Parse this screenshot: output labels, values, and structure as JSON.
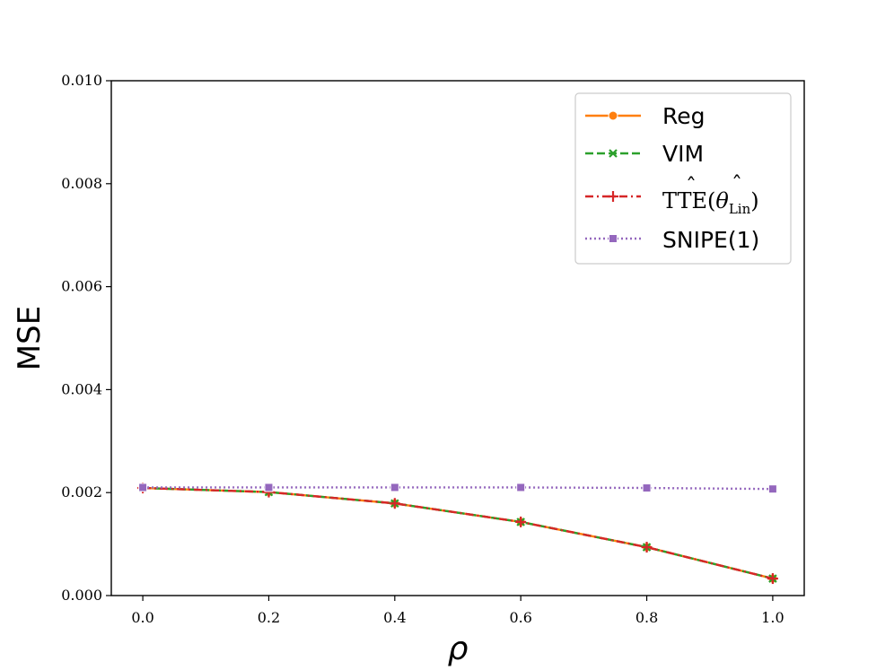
{
  "chart_data": {
    "type": "line",
    "xlabel": "ρ",
    "ylabel": "MSE",
    "xlim": [
      -0.05,
      1.05
    ],
    "ylim": [
      0.0,
      0.01
    ],
    "x_ticks": [
      "0.0",
      "0.2",
      "0.4",
      "0.6",
      "0.8",
      "1.0"
    ],
    "y_ticks": [
      "0.000",
      "0.002",
      "0.004",
      "0.006",
      "0.008",
      "0.010"
    ],
    "grid": false,
    "legend_position": "top-right",
    "x": [
      0.0,
      0.2,
      0.4,
      0.6,
      0.8,
      1.0
    ],
    "series": [
      {
        "name": "Reg",
        "values": [
          0.00209,
          0.00201,
          0.00179,
          0.00143,
          0.00094,
          0.00033
        ],
        "color": "#ff7f0e",
        "line_style": "solid",
        "marker": "circle"
      },
      {
        "name": "VIM",
        "values": [
          0.00209,
          0.00201,
          0.00179,
          0.00143,
          0.00094,
          0.00033
        ],
        "color": "#2ca02c",
        "line_style": "dashed",
        "marker": "x"
      },
      {
        "name": "TTE(θLin)",
        "values": [
          0.00209,
          0.00201,
          0.00179,
          0.00143,
          0.00094,
          0.00033
        ],
        "color": "#d62728",
        "line_style": "dashdot",
        "marker": "plus",
        "legend_math": {
          "hat_text": "TTE",
          "open": "(",
          "theta": "θ",
          "subscript": "Lin",
          "close": ")"
        }
      },
      {
        "name": "SNIPE(1)",
        "values": [
          0.0021,
          0.0021,
          0.0021,
          0.0021,
          0.00209,
          0.00207
        ],
        "color": "#9467bd",
        "line_style": "dotted",
        "marker": "square"
      }
    ]
  }
}
